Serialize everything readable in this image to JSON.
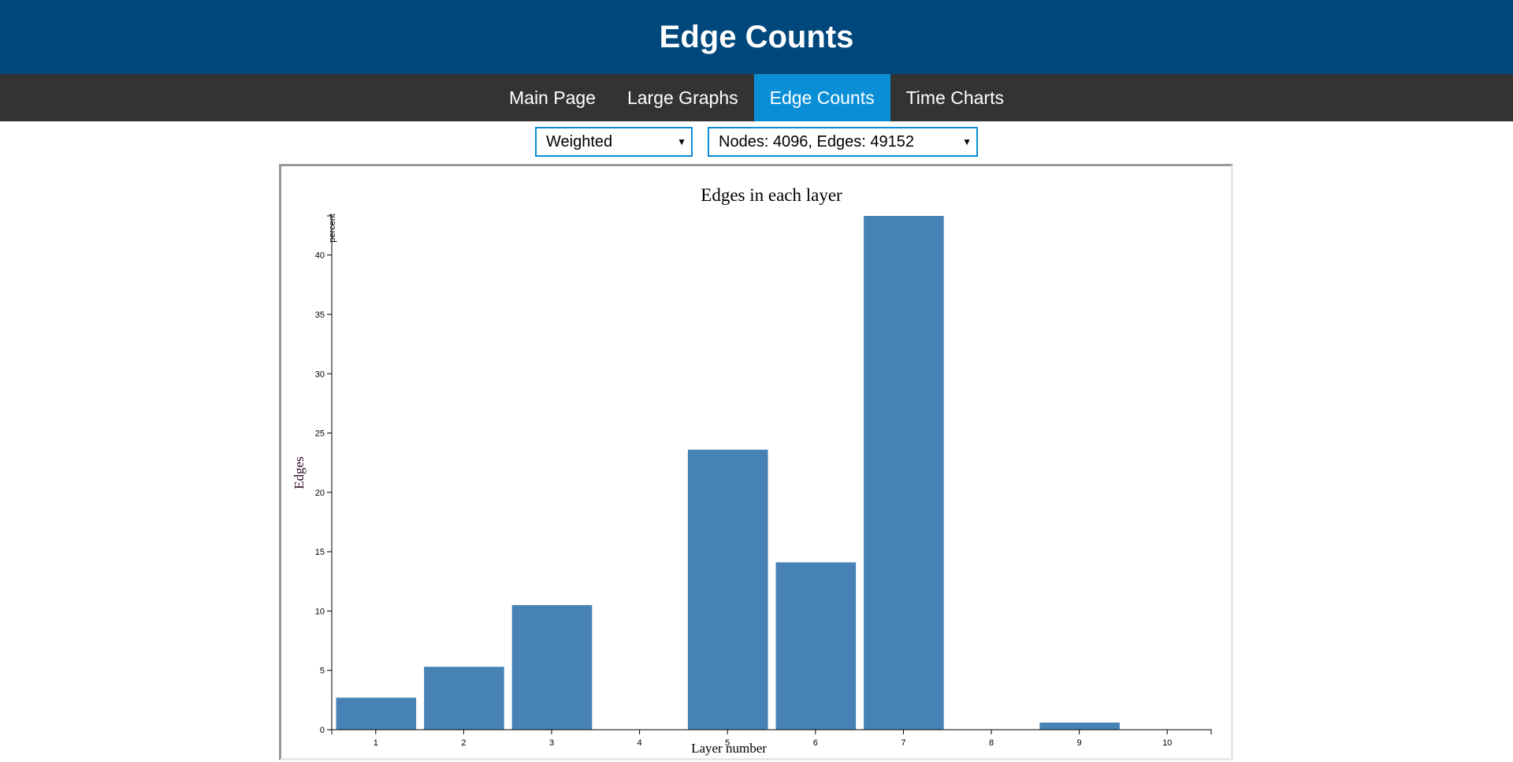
{
  "header": {
    "title": "Edge Counts"
  },
  "nav": {
    "items": [
      {
        "label": "Main Page",
        "active": false
      },
      {
        "label": "Large Graphs",
        "active": false
      },
      {
        "label": "Edge Counts",
        "active": true
      },
      {
        "label": "Time Charts",
        "active": false
      }
    ]
  },
  "controls": {
    "type_select": {
      "value": "Weighted"
    },
    "graph_select": {
      "value": "Nodes: 4096, Edges: 49152"
    }
  },
  "colors": {
    "header_bg": "#00487c",
    "nav_bg": "#333333",
    "nav_active": "#0a8fd6",
    "bar": "#4682b4"
  },
  "chart_data": {
    "type": "bar",
    "title": "Edges in each layer",
    "xlabel": "Layer number",
    "ylabel": "Edges",
    "unit_label": "percent",
    "categories": [
      "1",
      "2",
      "3",
      "4",
      "5",
      "6",
      "7",
      "8",
      "9",
      "10"
    ],
    "values": [
      2.7,
      5.3,
      10.5,
      0,
      23.6,
      14.1,
      43.3,
      0,
      0.6,
      0
    ],
    "ylim": [
      0,
      43.3
    ],
    "yticks": [
      0,
      5,
      10,
      15,
      20,
      25,
      30,
      35,
      40
    ],
    "grid": false,
    "legend": "none"
  }
}
